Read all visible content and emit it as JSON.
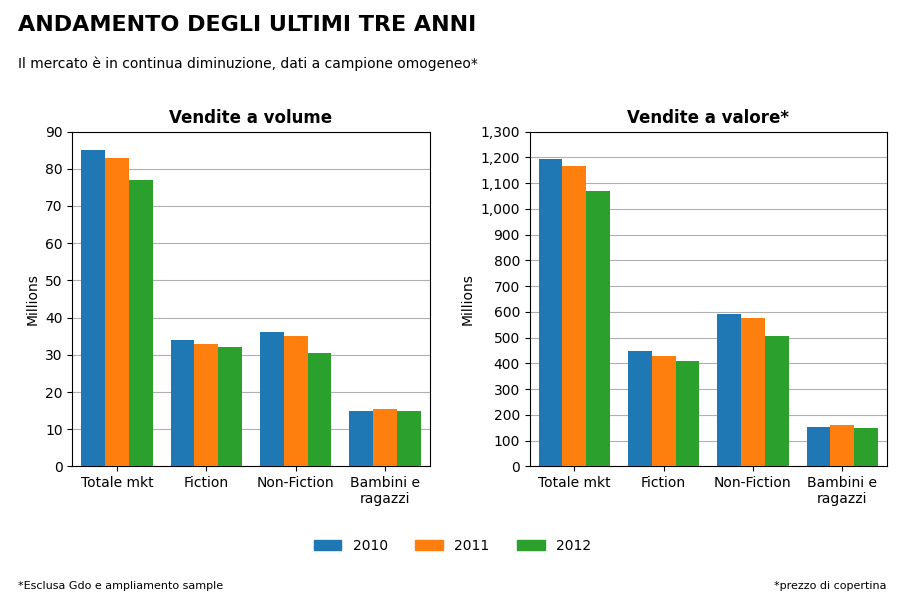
{
  "title": "ANDAMENTO DEGLI ULTIMI TRE ANNI",
  "subtitle": "Il mercato è in continua diminuzione, dati a campione omogeneo*",
  "annotations": [
    "*Esclusa Gdo e ampliamento sample",
    "*prezzo di copertina"
  ],
  "chart_data": [
    {
      "type": "bar",
      "title": "Vendite a volume",
      "ylabel": "Millions",
      "categories": [
        "Totale mkt",
        "Fiction",
        "Non-Fiction",
        "Bambini e\nragazzi"
      ],
      "series": [
        {
          "name": "2010",
          "values": [
            85,
            34,
            36,
            15
          ]
        },
        {
          "name": "2011",
          "values": [
            83,
            33,
            35,
            15.5
          ]
        },
        {
          "name": "2012",
          "values": [
            77,
            32,
            30.5,
            15
          ]
        }
      ],
      "ylim": [
        0,
        90
      ],
      "yticks": [
        0,
        10,
        20,
        30,
        40,
        50,
        60,
        70,
        80,
        90
      ],
      "grid": true,
      "legend": "lower center"
    },
    {
      "type": "bar",
      "title": "Vendite a valore*",
      "ylabel": "Millions",
      "categories": [
        "Totale mkt",
        "Fiction",
        "Non-Fiction",
        "Bambini e\nragazzi"
      ],
      "series": [
        {
          "name": "2010",
          "values": [
            1195,
            450,
            590,
            155
          ]
        },
        {
          "name": "2011",
          "values": [
            1165,
            430,
            575,
            160
          ]
        },
        {
          "name": "2012",
          "values": [
            1070,
            410,
            505,
            148
          ]
        }
      ],
      "ylim": [
        0,
        1300
      ],
      "yticks": [
        0,
        100,
        200,
        300,
        400,
        500,
        600,
        700,
        800,
        900,
        {
          "value": 1000,
          "label": "1,000"
        },
        {
          "value": 1100,
          "label": "1,100"
        },
        {
          "value": 1200,
          "label": "1,200"
        },
        {
          "value": 1300,
          "label": "1,300"
        }
      ],
      "grid": true,
      "legend": "lower center"
    }
  ]
}
